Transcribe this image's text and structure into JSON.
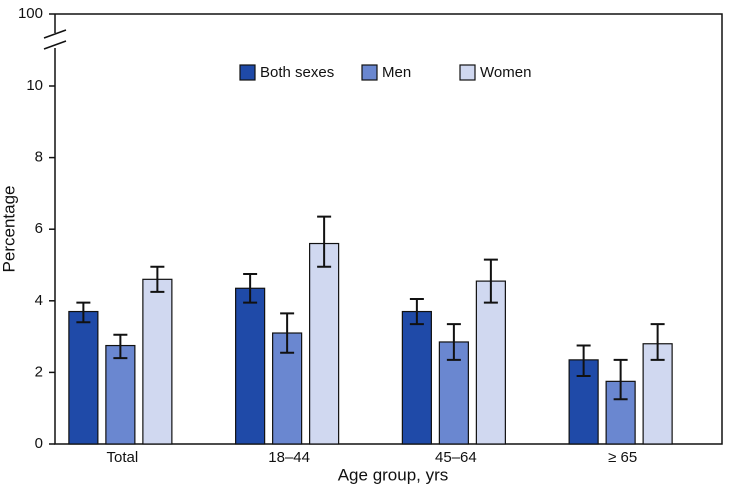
{
  "chart_data": {
    "type": "bar",
    "xlabel": "Age group, yrs",
    "ylabel": "Percentage",
    "categories": [
      "Total",
      "18–44",
      "45–64",
      "≥ 65"
    ],
    "series": [
      {
        "name": "Both sexes",
        "color": "#1f4aa8",
        "values": [
          3.7,
          4.35,
          3.7,
          2.35
        ],
        "ci_low": [
          3.4,
          3.95,
          3.35,
          1.9
        ],
        "ci_high": [
          3.95,
          4.75,
          4.05,
          2.75
        ]
      },
      {
        "name": "Men",
        "color": "#6a87d0",
        "values": [
          2.75,
          3.1,
          2.85,
          1.75
        ],
        "ci_low": [
          2.4,
          2.55,
          2.35,
          1.25
        ],
        "ci_high": [
          3.05,
          3.65,
          3.35,
          2.35
        ]
      },
      {
        "name": "Women",
        "color": "#d0d8f0",
        "values": [
          4.6,
          5.6,
          4.55,
          2.8
        ],
        "ci_low": [
          4.25,
          4.95,
          3.95,
          2.35
        ],
        "ci_high": [
          4.95,
          6.35,
          5.15,
          3.35
        ]
      }
    ],
    "ylim": [
      0,
      100
    ],
    "yticks": [
      0,
      2,
      4,
      6,
      8,
      10,
      100
    ],
    "axis_break": true,
    "grid": false,
    "legend": "top"
  }
}
